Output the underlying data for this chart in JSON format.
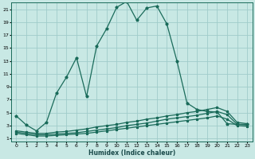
{
  "xlabel": "Humidex (Indice chaleur)",
  "bg_color": "#c8e8e4",
  "grid_color": "#a0ccca",
  "line_color": "#1a6b5a",
  "xlim": [
    -0.5,
    23.5
  ],
  "ylim": [
    0.5,
    22.0
  ],
  "xticks": [
    0,
    1,
    2,
    3,
    4,
    5,
    6,
    7,
    8,
    9,
    10,
    11,
    12,
    13,
    14,
    15,
    16,
    17,
    18,
    19,
    20,
    21,
    22,
    23
  ],
  "yticks": [
    1,
    3,
    5,
    7,
    9,
    11,
    13,
    15,
    17,
    19,
    21
  ],
  "line1_x": [
    0,
    1,
    2,
    3,
    4,
    5,
    6,
    7,
    8,
    9,
    10,
    11,
    12,
    13,
    14,
    15,
    16,
    17,
    18,
    19,
    20,
    21,
    22,
    23
  ],
  "line1_y": [
    4.5,
    3.1,
    2.2,
    3.5,
    8.0,
    10.5,
    13.5,
    7.5,
    15.3,
    18.0,
    21.3,
    22.2,
    19.3,
    21.2,
    21.5,
    18.7,
    13.0,
    6.5,
    5.5,
    5.2,
    5.1,
    3.3,
    3.2,
    3.2
  ],
  "line2_x": [
    0,
    1,
    2,
    3,
    4,
    5,
    6,
    7,
    8,
    9,
    10,
    11,
    12,
    13,
    14,
    15,
    16,
    17,
    18,
    19,
    20,
    21,
    22,
    23
  ],
  "line2_y": [
    2.2,
    2.0,
    1.8,
    1.8,
    2.0,
    2.1,
    2.3,
    2.5,
    2.8,
    3.0,
    3.2,
    3.5,
    3.7,
    4.0,
    4.2,
    4.5,
    4.7,
    5.0,
    5.2,
    5.5,
    5.8,
    5.2,
    3.5,
    3.3
  ],
  "line3_x": [
    0,
    1,
    2,
    3,
    4,
    5,
    6,
    7,
    8,
    9,
    10,
    11,
    12,
    13,
    14,
    15,
    16,
    17,
    18,
    19,
    20,
    21,
    22,
    23
  ],
  "line3_y": [
    2.0,
    1.8,
    1.6,
    1.6,
    1.7,
    1.8,
    1.9,
    2.1,
    2.3,
    2.5,
    2.7,
    3.0,
    3.2,
    3.4,
    3.7,
    4.0,
    4.2,
    4.4,
    4.6,
    4.9,
    5.2,
    4.7,
    3.2,
    3.1
  ],
  "line4_x": [
    0,
    1,
    2,
    3,
    4,
    5,
    6,
    7,
    8,
    9,
    10,
    11,
    12,
    13,
    14,
    15,
    16,
    17,
    18,
    19,
    20,
    21,
    22,
    23
  ],
  "line4_y": [
    1.8,
    1.6,
    1.4,
    1.4,
    1.5,
    1.6,
    1.7,
    1.8,
    2.0,
    2.2,
    2.4,
    2.6,
    2.8,
    3.0,
    3.2,
    3.4,
    3.6,
    3.8,
    4.0,
    4.2,
    4.5,
    4.0,
    3.0,
    2.9
  ]
}
